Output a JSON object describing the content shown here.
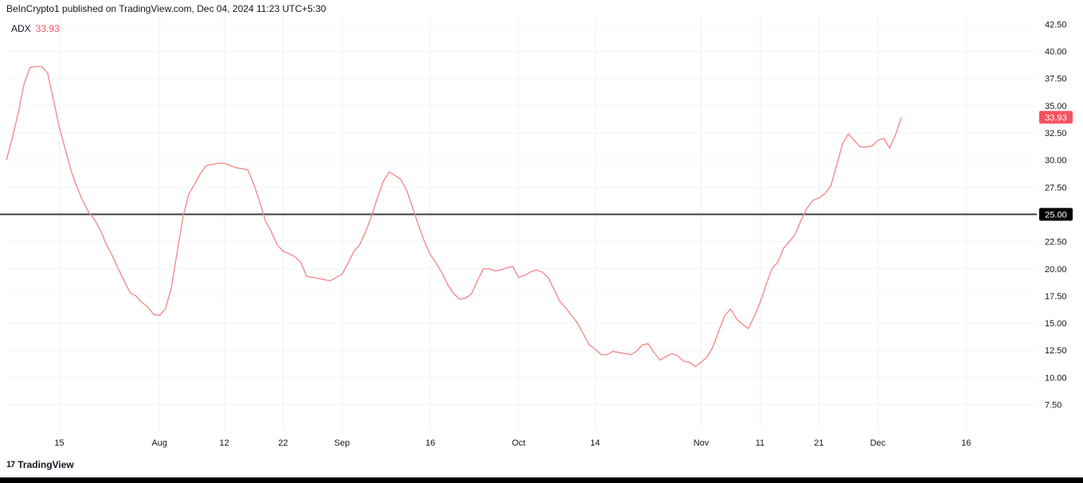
{
  "header": {
    "published_text": "BeInCrypto1 published on TradingView.com, Dec 04, 2024 11:23 UTC+5:30"
  },
  "legend": {
    "name": "ADX",
    "value": "33.93"
  },
  "footer": {
    "brand": "TradingView",
    "logo_glyph": "17"
  },
  "colors": {
    "series": "#f7525f",
    "series_line": "#f58c8c",
    "level_line": "#3d3d3d",
    "level_badge": "#000000",
    "grid": "#f0f3fa",
    "axis_text": "#131722"
  },
  "chart_data": {
    "type": "line",
    "title": "",
    "ylabel": "",
    "xlabel": "",
    "ylim": [
      5.2,
      43.4
    ],
    "grid": true,
    "y_ticks": [
      "42.50",
      "40.00",
      "37.50",
      "35.00",
      "32.50",
      "30.00",
      "27.50",
      "25.00",
      "22.50",
      "20.00",
      "17.50",
      "15.00",
      "12.50",
      "10.00",
      "7.50"
    ],
    "x_ticks": [
      "15",
      "Aug",
      "12",
      "22",
      "Sep",
      "16",
      "Oct",
      "14",
      "Nov",
      "11",
      "21",
      "Dec",
      "16"
    ],
    "x_tick_dates": [
      "2024-07-15",
      "2024-08-01",
      "2024-08-12",
      "2024-08-22",
      "2024-09-01",
      "2024-09-16",
      "2024-10-01",
      "2024-10-14",
      "2024-11-01",
      "2024-11-11",
      "2024-11-21",
      "2024-12-01",
      "2024-12-16"
    ],
    "x_range": [
      "2024-07-06",
      "2024-12-28"
    ],
    "level_line": {
      "value": 25.0,
      "label": "25.00"
    },
    "last_value_label": "33.93",
    "series": [
      {
        "name": "ADX",
        "points": [
          [
            "2024-07-06",
            30.0
          ],
          [
            "2024-07-07",
            32.0
          ],
          [
            "2024-07-08",
            34.3
          ],
          [
            "2024-07-09",
            37.0
          ],
          [
            "2024-07-10",
            38.5
          ],
          [
            "2024-07-11",
            38.6
          ],
          [
            "2024-07-12",
            38.6
          ],
          [
            "2024-07-13",
            38.0
          ],
          [
            "2024-07-14",
            35.5
          ],
          [
            "2024-07-15",
            33.0
          ],
          [
            "2024-07-16",
            31.0
          ],
          [
            "2024-07-17",
            29.0
          ],
          [
            "2024-07-18",
            27.5
          ],
          [
            "2024-07-19",
            26.2
          ],
          [
            "2024-07-20",
            25.2
          ],
          [
            "2024-07-21",
            24.5
          ],
          [
            "2024-07-22",
            23.5
          ],
          [
            "2024-07-23",
            22.2
          ],
          [
            "2024-07-24",
            21.2
          ],
          [
            "2024-07-25",
            20.0
          ],
          [
            "2024-07-26",
            18.9
          ],
          [
            "2024-07-27",
            17.8
          ],
          [
            "2024-07-28",
            17.5
          ],
          [
            "2024-07-29",
            16.9
          ],
          [
            "2024-07-30",
            16.5
          ],
          [
            "2024-07-31",
            15.8
          ],
          [
            "2024-08-01",
            15.7
          ],
          [
            "2024-08-02",
            16.3
          ],
          [
            "2024-08-03",
            18.2
          ],
          [
            "2024-08-04",
            21.5
          ],
          [
            "2024-08-05",
            24.8
          ],
          [
            "2024-08-06",
            26.9
          ],
          [
            "2024-08-07",
            27.8
          ],
          [
            "2024-08-08",
            28.8
          ],
          [
            "2024-08-09",
            29.5
          ],
          [
            "2024-08-10",
            29.6
          ],
          [
            "2024-08-11",
            29.7
          ],
          [
            "2024-08-12",
            29.7
          ],
          [
            "2024-08-13",
            29.5
          ],
          [
            "2024-08-14",
            29.3
          ],
          [
            "2024-08-15",
            29.2
          ],
          [
            "2024-08-16",
            29.1
          ],
          [
            "2024-08-17",
            27.8
          ],
          [
            "2024-08-18",
            26.2
          ],
          [
            "2024-08-19",
            24.4
          ],
          [
            "2024-08-20",
            23.4
          ],
          [
            "2024-08-21",
            22.2
          ],
          [
            "2024-08-22",
            21.6
          ],
          [
            "2024-08-23",
            21.4
          ],
          [
            "2024-08-24",
            21.1
          ],
          [
            "2024-08-25",
            20.6
          ],
          [
            "2024-08-26",
            19.3
          ],
          [
            "2024-08-27",
            19.2
          ],
          [
            "2024-08-28",
            19.1
          ],
          [
            "2024-08-29",
            19.0
          ],
          [
            "2024-08-30",
            18.9
          ],
          [
            "2024-08-31",
            19.2
          ],
          [
            "2024-09-01",
            19.5
          ],
          [
            "2024-09-02",
            20.5
          ],
          [
            "2024-09-03",
            21.6
          ],
          [
            "2024-09-04",
            22.2
          ],
          [
            "2024-09-05",
            23.4
          ],
          [
            "2024-09-06",
            24.8
          ],
          [
            "2024-09-07",
            26.5
          ],
          [
            "2024-09-08",
            28.0
          ],
          [
            "2024-09-09",
            28.9
          ],
          [
            "2024-09-10",
            28.6
          ],
          [
            "2024-09-11",
            28.2
          ],
          [
            "2024-09-12",
            27.2
          ],
          [
            "2024-09-13",
            25.6
          ],
          [
            "2024-09-14",
            24.0
          ],
          [
            "2024-09-15",
            22.5
          ],
          [
            "2024-09-16",
            21.3
          ],
          [
            "2024-09-17",
            20.5
          ],
          [
            "2024-09-18",
            19.6
          ],
          [
            "2024-09-19",
            18.5
          ],
          [
            "2024-09-20",
            17.7
          ],
          [
            "2024-09-21",
            17.2
          ],
          [
            "2024-09-22",
            17.3
          ],
          [
            "2024-09-23",
            17.7
          ],
          [
            "2024-09-24",
            18.9
          ],
          [
            "2024-09-25",
            20.0
          ],
          [
            "2024-09-26",
            20.0
          ],
          [
            "2024-09-27",
            19.8
          ],
          [
            "2024-09-28",
            19.9
          ],
          [
            "2024-09-29",
            20.1
          ],
          [
            "2024-09-30",
            20.2
          ],
          [
            "2024-10-01",
            19.2
          ],
          [
            "2024-10-02",
            19.4
          ],
          [
            "2024-10-03",
            19.7
          ],
          [
            "2024-10-04",
            19.9
          ],
          [
            "2024-10-05",
            19.7
          ],
          [
            "2024-10-06",
            19.2
          ],
          [
            "2024-10-07",
            18.1
          ],
          [
            "2024-10-08",
            17.0
          ],
          [
            "2024-10-09",
            16.4
          ],
          [
            "2024-10-10",
            15.7
          ],
          [
            "2024-10-11",
            15.0
          ],
          [
            "2024-10-12",
            14.0
          ],
          [
            "2024-10-13",
            13.0
          ],
          [
            "2024-10-14",
            12.6
          ],
          [
            "2024-10-15",
            12.1
          ],
          [
            "2024-10-16",
            12.1
          ],
          [
            "2024-10-17",
            12.4
          ],
          [
            "2024-10-18",
            12.3
          ],
          [
            "2024-10-19",
            12.2
          ],
          [
            "2024-10-20",
            12.1
          ],
          [
            "2024-10-21",
            12.4
          ],
          [
            "2024-10-22",
            13.0
          ],
          [
            "2024-10-23",
            13.1
          ],
          [
            "2024-10-24",
            12.3
          ],
          [
            "2024-10-25",
            11.6
          ],
          [
            "2024-10-26",
            11.9
          ],
          [
            "2024-10-27",
            12.2
          ],
          [
            "2024-10-28",
            12.0
          ],
          [
            "2024-10-29",
            11.5
          ],
          [
            "2024-10-30",
            11.4
          ],
          [
            "2024-10-31",
            11.0
          ],
          [
            "2024-11-01",
            11.4
          ],
          [
            "2024-11-02",
            11.9
          ],
          [
            "2024-11-03",
            12.8
          ],
          [
            "2024-11-04",
            14.3
          ],
          [
            "2024-11-05",
            15.7
          ],
          [
            "2024-11-06",
            16.3
          ],
          [
            "2024-11-07",
            15.4
          ],
          [
            "2024-11-08",
            14.9
          ],
          [
            "2024-11-09",
            14.5
          ],
          [
            "2024-11-10",
            15.6
          ],
          [
            "2024-11-11",
            16.9
          ],
          [
            "2024-11-12",
            18.5
          ],
          [
            "2024-11-13",
            20.0
          ],
          [
            "2024-11-14",
            20.6
          ],
          [
            "2024-11-15",
            21.9
          ],
          [
            "2024-11-16",
            22.5
          ],
          [
            "2024-11-17",
            23.2
          ],
          [
            "2024-11-18",
            24.5
          ],
          [
            "2024-11-19",
            25.6
          ],
          [
            "2024-11-20",
            26.3
          ],
          [
            "2024-11-21",
            26.5
          ],
          [
            "2024-11-22",
            26.9
          ],
          [
            "2024-11-23",
            27.6
          ],
          [
            "2024-11-24",
            29.5
          ],
          [
            "2024-11-25",
            31.5
          ],
          [
            "2024-11-26",
            32.4
          ],
          [
            "2024-11-27",
            31.8
          ],
          [
            "2024-11-28",
            31.2
          ],
          [
            "2024-11-29",
            31.2
          ],
          [
            "2024-11-30",
            31.3
          ],
          [
            "2024-12-01",
            31.8
          ],
          [
            "2024-12-02",
            32.0
          ],
          [
            "2024-12-03",
            31.1
          ],
          [
            "2024-12-04",
            32.3
          ],
          [
            "2024-12-05",
            33.93
          ]
        ]
      }
    ]
  }
}
